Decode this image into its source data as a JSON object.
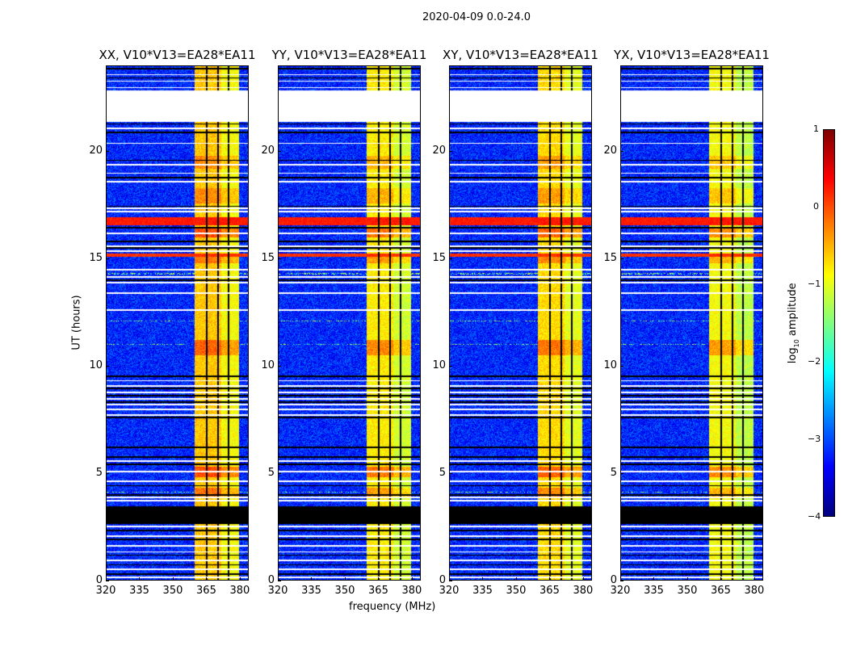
{
  "chart_data": {
    "type": "heatmap",
    "title": "2020-04-09 0.0-24.0",
    "panels": [
      {
        "title": "XX, V10*V13=EA28*EA11",
        "band_offset": 0.1
      },
      {
        "title": "YY, V10*V13=EA28*EA11",
        "band_offset": -0.1
      },
      {
        "title": "XY, V10*V13=EA28*EA11",
        "band_offset": 0.0
      },
      {
        "title": "YX, V10*V13=EA28*EA11",
        "band_offset": -0.2
      }
    ],
    "xlabel": "frequency (MHz)",
    "ylabel": "UT (hours)",
    "xlim": [
      320,
      384
    ],
    "ylim": [
      0,
      24
    ],
    "xticks": [
      "320",
      "335",
      "350",
      "365",
      "380"
    ],
    "xtick_values": [
      320,
      335,
      350,
      365,
      380
    ],
    "yticks": [
      "0",
      "5",
      "10",
      "15",
      "20"
    ],
    "ytick_values": [
      0,
      5,
      10,
      15,
      20
    ],
    "colorbar": {
      "label_parts": [
        "log",
        "10",
        " amplitude"
      ],
      "range": [
        -4,
        1
      ],
      "ticks": [
        "1",
        "0",
        "−1",
        "−2",
        "−3",
        "−4"
      ],
      "tick_values": [
        1,
        0,
        -1,
        -2,
        -3,
        -4
      ],
      "colormap": "jet"
    },
    "background_level": -3.2,
    "rfi_band": {
      "range": [
        360,
        380
      ],
      "level": -0.7
    },
    "channel_gaps": [
      365.5,
      370.5,
      375.2
    ],
    "bright_hours": [
      [
        16.0,
        16.5,
        0.6
      ],
      [
        14.8,
        15.2,
        0.4
      ],
      [
        10.5,
        11.2,
        0.5
      ],
      [
        4.8,
        5.3,
        0.6
      ],
      [
        3.9,
        4.3,
        0.4
      ],
      [
        17.6,
        18.3,
        0.3
      ],
      [
        19.2,
        19.8,
        0.3
      ]
    ],
    "strong_rows": [
      [
        16.55,
        16.95,
        0.3
      ],
      [
        15.1,
        15.25,
        0.2
      ]
    ],
    "flagged_white": [
      [
        21.4,
        22.85
      ]
    ],
    "flagged_black": [
      [
        2.6,
        3.45
      ]
    ],
    "rfi_lines": [
      12.1,
      11.0,
      4.1,
      14.3
    ],
    "white_lines": [
      23.6,
      23.3,
      23.0,
      21.1,
      20.4,
      19.4,
      19.0,
      18.6,
      17.35,
      17.2,
      16.2,
      15.6,
      15.35,
      14.5,
      14.15,
      13.9,
      13.4,
      12.6,
      9.3,
      9.05,
      8.75,
      8.45,
      8.2,
      7.95,
      7.7,
      5.55,
      5.05,
      4.6,
      3.85,
      3.7,
      2.5,
      2.05,
      1.6,
      1.3,
      0.9,
      0.5,
      0.1
    ],
    "black_lines": [
      23.9,
      23.45,
      21.3,
      20.9,
      19.6,
      18.8,
      17.45,
      16.45,
      15.8,
      15.5,
      14.0,
      9.5,
      8.95,
      8.6,
      8.3,
      7.6,
      6.2,
      5.75,
      5.4,
      4.4,
      3.95,
      2.3,
      1.9,
      1.15,
      0.7,
      0.25
    ]
  }
}
